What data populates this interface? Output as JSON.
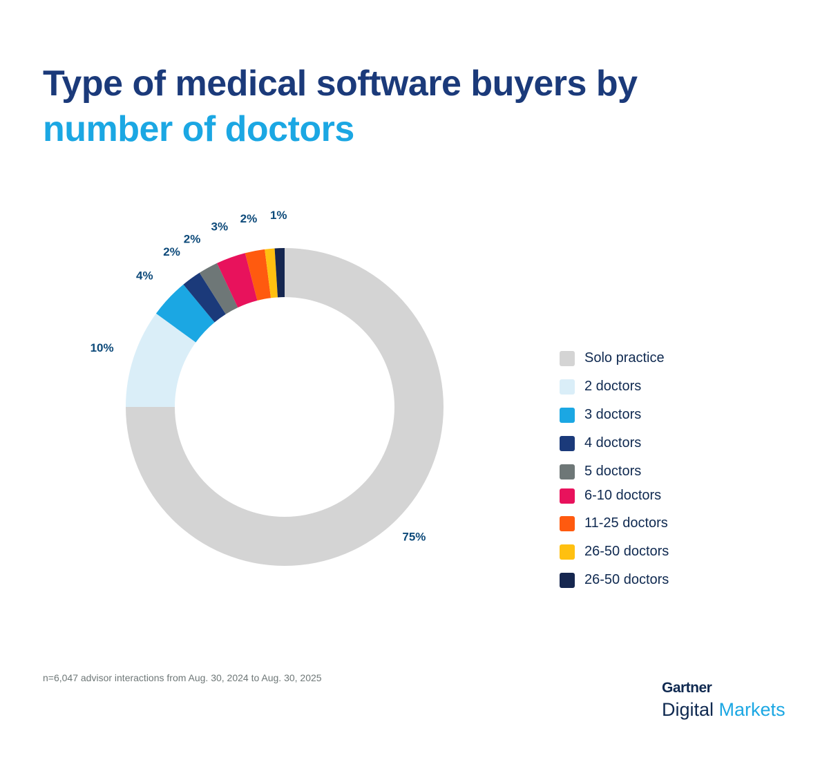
{
  "title": {
    "line1": "Type of medical software buyers by",
    "line2": "number of doctors"
  },
  "footnote": "n=6,047 advisor interactions from Aug. 30, 2024 to Aug. 30, 2025",
  "logo": {
    "brand": "Gartner",
    "sub1": "Digital",
    "sub2": "Markets"
  },
  "chart_data": {
    "type": "pie",
    "variant": "donut",
    "title": "Type of medical software buyers by number of doctors",
    "legend_position": "right",
    "categories": [
      "Solo practice",
      "2 doctors",
      "3 doctors",
      "4 doctors",
      "5 doctors",
      "6-10 doctors",
      "11-25 doctors",
      "26-50 doctors",
      "26-50 doctors"
    ],
    "values": [
      75,
      10,
      4,
      2,
      2,
      3,
      2,
      1,
      1
    ],
    "labels": [
      "75%",
      "10%",
      "4%",
      "2%",
      "2%",
      "3%",
      "2%",
      "",
      "1%"
    ],
    "colors": [
      "#d4d4d4",
      "#daeef8",
      "#1ba7e3",
      "#1b3a7a",
      "#6e7777",
      "#e8125c",
      "#ff5a0f",
      "#ffc010",
      "#15264f"
    ]
  }
}
